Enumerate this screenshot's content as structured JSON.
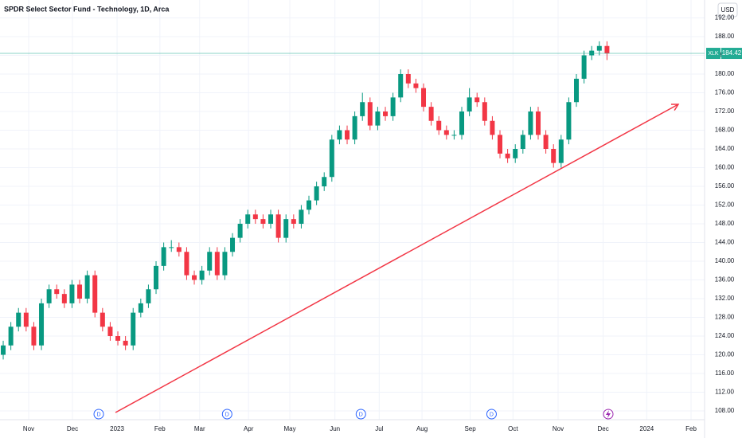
{
  "chart_data": {
    "type": "candlestick",
    "title": "SPDR Select Sector Fund - Technology, 1D, Arca",
    "currency": "USD",
    "symbol": "XLK",
    "up_color": "#089981",
    "down_color": "#f23645",
    "last_color": "#22ab94",
    "grid": true,
    "open": [
      120,
      122,
      126,
      129,
      126,
      122,
      131,
      134,
      133,
      131,
      135,
      132,
      137,
      129,
      126,
      124,
      123,
      122,
      129,
      131,
      134,
      139,
      143,
      143,
      142,
      137,
      136,
      138,
      142,
      137,
      142,
      145,
      148,
      150,
      149,
      148,
      150,
      145,
      149,
      148,
      151,
      153,
      156,
      158,
      166,
      168,
      166,
      171,
      174,
      169,
      172,
      171,
      175,
      180,
      178,
      177,
      173,
      170,
      168,
      167,
      167,
      172,
      175,
      174,
      170,
      167,
      163,
      162,
      164,
      167,
      172,
      167,
      164,
      161,
      166,
      174,
      179,
      184,
      185,
      186
    ],
    "high": [
      123,
      127,
      130,
      130,
      127,
      132,
      135,
      135,
      134,
      136,
      136,
      138,
      138,
      130,
      127,
      125,
      124,
      130,
      132,
      135,
      140,
      144,
      144.5,
      144,
      143,
      138,
      139,
      143,
      143,
      143,
      146,
      149,
      151,
      151,
      150,
      151,
      151,
      150,
      150,
      152,
      154,
      157,
      159,
      167,
      169,
      169,
      172,
      176,
      175,
      173,
      173,
      176,
      181,
      181,
      179,
      178,
      174,
      171,
      169,
      168,
      173,
      177,
      176,
      175,
      171,
      168,
      164,
      165,
      168,
      173,
      173,
      168,
      165,
      167,
      175,
      180,
      185,
      186,
      187,
      187
    ],
    "low": [
      119,
      121,
      125,
      125,
      121,
      121,
      130,
      132,
      130,
      130,
      131,
      131,
      128,
      125,
      123,
      122,
      121,
      121,
      128,
      130,
      133,
      138,
      142,
      141,
      136,
      135,
      135,
      137,
      136,
      136,
      141,
      144,
      147,
      148,
      147,
      147,
      144,
      144,
      147,
      147,
      150,
      152,
      155,
      157,
      165,
      165,
      165,
      170,
      168,
      168,
      170,
      170,
      174,
      177,
      176,
      172,
      169,
      167,
      166,
      166,
      166,
      171,
      173,
      169,
      166,
      162,
      161,
      161,
      163,
      166,
      166,
      163,
      160,
      160,
      165,
      173,
      178,
      183,
      184,
      183
    ],
    "close": [
      122,
      126,
      129,
      126,
      122,
      131,
      134,
      133,
      131,
      135,
      132,
      137,
      129,
      126,
      124,
      123,
      122,
      129,
      131,
      134,
      139,
      143,
      143,
      142,
      137,
      136,
      138,
      142,
      137,
      142,
      145,
      148,
      150,
      149,
      148,
      150,
      145,
      149,
      148,
      151,
      153,
      156,
      158,
      166,
      168,
      166,
      171,
      174,
      169,
      172,
      171,
      175,
      180,
      178,
      177,
      173,
      170,
      168,
      167,
      167,
      172,
      175,
      174,
      170,
      167,
      163,
      162,
      164,
      167,
      172,
      167,
      164,
      161,
      166,
      174,
      179,
      184,
      185,
      186,
      184.42
    ],
    "xlim": [
      -0.42,
      91.77
    ],
    "xticks": [
      {
        "value": 3.33,
        "label": "Nov"
      },
      {
        "value": 9.06,
        "label": "Dec"
      },
      {
        "value": 14.9,
        "label": "2023"
      },
      {
        "value": 20.5,
        "label": "Feb"
      },
      {
        "value": 25.7,
        "label": "Mar"
      },
      {
        "value": 32.1,
        "label": "Apr"
      },
      {
        "value": 37.5,
        "label": "May"
      },
      {
        "value": 43.4,
        "label": "Jun"
      },
      {
        "value": 49.2,
        "label": "Jul"
      },
      {
        "value": 54.8,
        "label": "Aug"
      },
      {
        "value": 61.1,
        "label": "Sep"
      },
      {
        "value": 66.7,
        "label": "Oct"
      },
      {
        "value": 72.6,
        "label": "Nov"
      },
      {
        "value": 78.5,
        "label": "Dec"
      },
      {
        "value": 84.2,
        "label": "2024"
      },
      {
        "value": 90,
        "label": "Feb"
      }
    ],
    "ylim": [
      106.47,
      195.83
    ],
    "yticks": [
      {
        "value": 108,
        "label": "108.00"
      },
      {
        "value": 112,
        "label": "112.00"
      },
      {
        "value": 116,
        "label": "116.00"
      },
      {
        "value": 120,
        "label": "120.00"
      },
      {
        "value": 124,
        "label": "124.00"
      },
      {
        "value": 128,
        "label": "128.00"
      },
      {
        "value": 132,
        "label": "132.00"
      },
      {
        "value": 136,
        "label": "136.00"
      },
      {
        "value": 140,
        "label": "140.00"
      },
      {
        "value": 144,
        "label": "144.00"
      },
      {
        "value": 148,
        "label": "148.00"
      },
      {
        "value": 152,
        "label": "152.00"
      },
      {
        "value": 156,
        "label": "156.00"
      },
      {
        "value": 160,
        "label": "160.00"
      },
      {
        "value": 164,
        "label": "164.00"
      },
      {
        "value": 168,
        "label": "168.00"
      },
      {
        "value": 172,
        "label": "172.00"
      },
      {
        "value": 176,
        "label": "176.00"
      },
      {
        "value": 180,
        "label": "180.00"
      },
      {
        "value": 184,
        "label": "184.00"
      },
      {
        "value": 188,
        "label": "188.00"
      },
      {
        "value": 192,
        "label": "192.00"
      }
    ],
    "trendline": {
      "x": [
        14.69,
        88.33
      ],
      "y": [
        107.66,
        173.53
      ],
      "color": "#f23645"
    },
    "events": [
      {
        "label": "D",
        "x": 12.5
      },
      {
        "label": "D",
        "x": 29.3
      },
      {
        "label": "D",
        "x": 46.8
      },
      {
        "label": "D",
        "x": 63.9
      }
    ]
  }
}
